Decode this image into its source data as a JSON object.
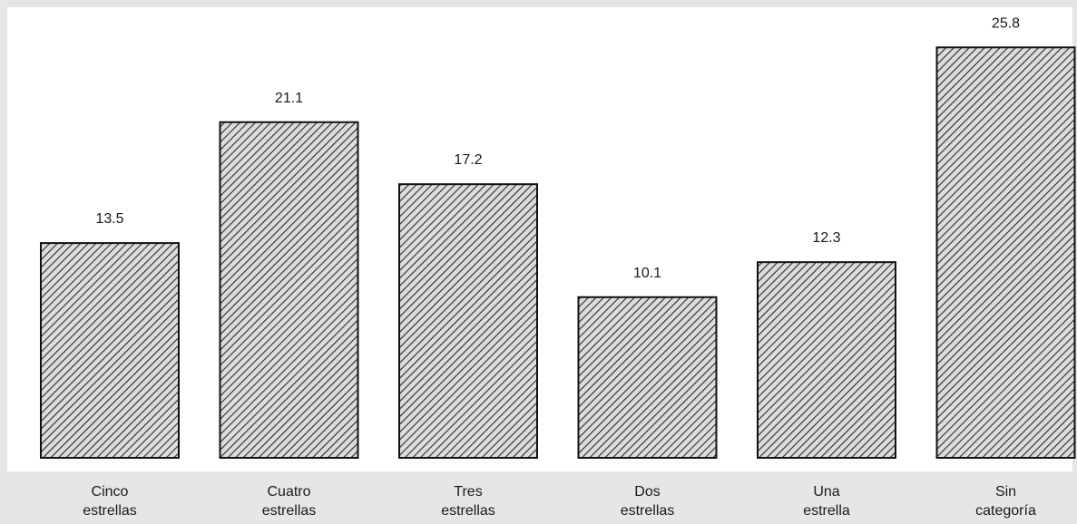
{
  "chart_data": {
    "type": "bar",
    "categories": [
      [
        "Cinco",
        "estrellas"
      ],
      [
        "Cuatro",
        "estrellas"
      ],
      [
        "Tres",
        "estrellas"
      ],
      [
        "Dos",
        "estrellas"
      ],
      [
        "Una",
        "estrella"
      ],
      [
        "Sin",
        "categoría"
      ]
    ],
    "values": [
      13.5,
      21.1,
      17.2,
      10.1,
      12.3,
      25.8
    ],
    "value_labels": [
      "13.5",
      "21.1",
      "17.2",
      "10.1",
      "12.3",
      "25.8"
    ],
    "title": "",
    "xlabel": "",
    "ylabel": "",
    "ylim": [
      0,
      26.5
    ],
    "grid": false,
    "bar_fill": "hatched",
    "colors": {
      "background": "#e6e6e6",
      "plot_background": "#ffffff",
      "bar_fill": "#dcdcdc",
      "bar_hatch": "#2a2a2a",
      "bar_stroke": "#111111"
    }
  }
}
